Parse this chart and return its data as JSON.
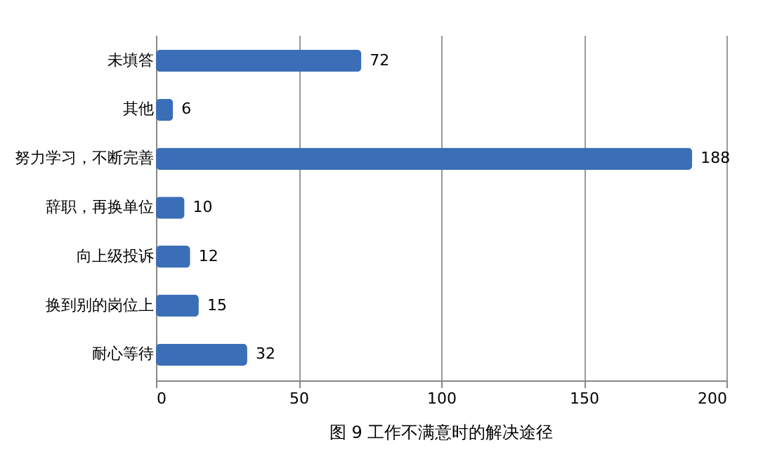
{
  "chart_data": {
    "type": "bar",
    "orientation": "horizontal",
    "title": "图 9 工作不满意时的解决途径",
    "categories": [
      "未填答",
      "其他",
      "努力学习，不断完善",
      "辞职，再换单位",
      "向上级投诉",
      "换到别的岗位上",
      "耐心等待"
    ],
    "values": [
      72,
      6,
      188,
      10,
      12,
      15,
      32
    ],
    "color": "#3a6fb8",
    "xlim": [
      0,
      200
    ],
    "xticks": [
      0,
      50,
      100,
      150,
      200
    ],
    "grid": "x",
    "data_labels": true
  }
}
